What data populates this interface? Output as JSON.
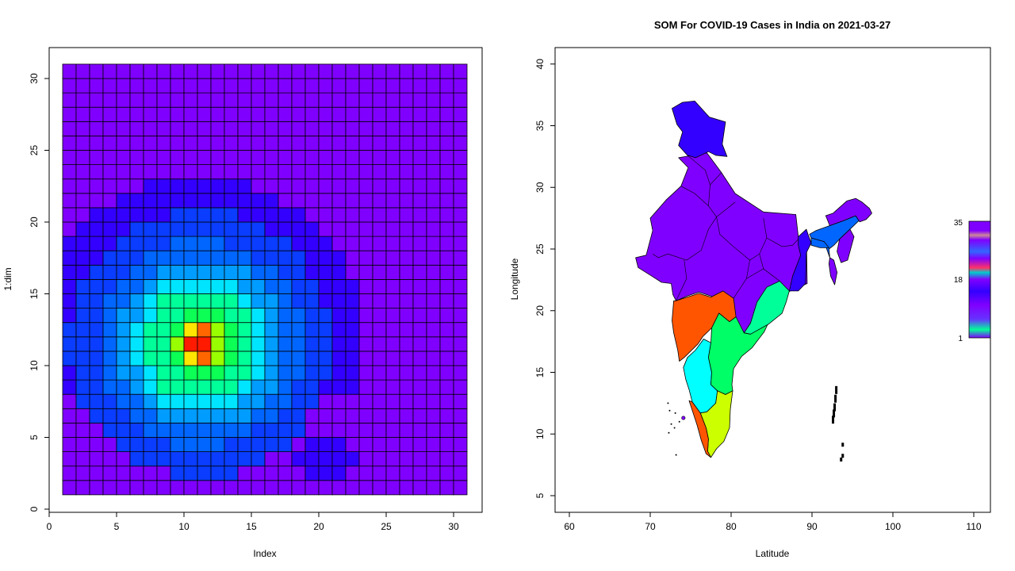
{
  "chart_data": [
    {
      "type": "heatmap",
      "title": "",
      "xlabel": "Index",
      "ylabel": "1:dim",
      "xlim": [
        0,
        31
      ],
      "ylim": [
        0,
        31
      ],
      "x_ticks": [
        "0",
        "5",
        "10",
        "15",
        "20",
        "25",
        "30"
      ],
      "y_ticks": [
        "0",
        "5",
        "10",
        "15",
        "20",
        "25",
        "30"
      ],
      "grid": "30x30 cells with black borders",
      "palette": "rainbow (red to violet)",
      "background_color": "#8000ff",
      "note_colors": {
        "violet": "#8000ff",
        "blue_violet": "#3300ff",
        "blue": "#0a3dff",
        "mid_blue": "#0066ff",
        "azure": "#009cff",
        "cyan": "#00e5ff",
        "spring_green": "#00ff99",
        "green": "#0cff55",
        "yellow_green": "#99ff00",
        "yellow": "#ffe500",
        "orange": "#ff6600",
        "red": "#ff1a00"
      }
    },
    {
      "type": "map",
      "title": "SOM For COVID-19 Cases in India on 2021-03-27",
      "xlabel": "Latitude",
      "ylabel": "Longitude",
      "xlim": [
        58,
        112
      ],
      "ylim": [
        3,
        42
      ],
      "x_ticks": [
        "60",
        "70",
        "80",
        "90",
        "100",
        "110"
      ],
      "y_ticks": [
        "5",
        "10",
        "15",
        "20",
        "25",
        "30",
        "35",
        "40"
      ],
      "legend": {
        "position": "right",
        "labels": [
          "35",
          "18",
          "1"
        ]
      },
      "regions": [
        {
          "name": "Jammu and Kashmir",
          "color": "#3300ff"
        },
        {
          "name": "Northern and Central India",
          "color": "#8000ff"
        },
        {
          "name": "Maharashtra",
          "color": "#ff5500"
        },
        {
          "name": "Karnataka",
          "color": "#00ffff"
        },
        {
          "name": "Andhra Pradesh and Telangana",
          "color": "#00ff66"
        },
        {
          "name": "Odisha",
          "color": "#00ff99"
        },
        {
          "name": "Tamil Nadu",
          "color": "#ccff00"
        },
        {
          "name": "Kerala",
          "color": "#ff5500"
        },
        {
          "name": "Assam",
          "color": "#0066ff"
        },
        {
          "name": "West Bengal",
          "color": "#3300ff"
        },
        {
          "name": "Northeast states",
          "color": "#8000ff"
        }
      ]
    }
  ]
}
